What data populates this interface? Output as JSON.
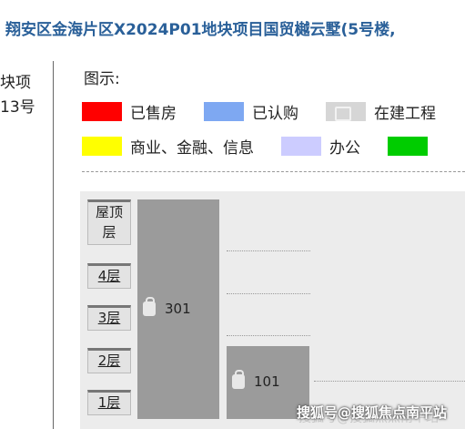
{
  "header": {
    "title": "翔安区金海片区X2024P01地块项目国贸樾云墅(5号楼,"
  },
  "building": {
    "line1": "块项",
    "line2": "13号"
  },
  "legend": {
    "title": "图示:",
    "items": [
      {
        "label": "已售房",
        "color": "#ff0000"
      },
      {
        "label": "已认购",
        "color": "#7ea8f2"
      },
      {
        "label": "在建工程",
        "color": "#d6d6d6"
      },
      {
        "label": "商业、金融、信息",
        "color": "#ffff00"
      },
      {
        "label": "办公",
        "color": "#ccccff"
      },
      {
        "label": "",
        "color": "#00cc00"
      }
    ]
  },
  "floors": [
    {
      "label": "屋顶层"
    },
    {
      "label": "4层"
    },
    {
      "label": "3层"
    },
    {
      "label": "2层"
    },
    {
      "label": "1层"
    }
  ],
  "units": [
    {
      "number": "301",
      "status": "在建工程",
      "color": "#9b9b9b"
    },
    {
      "number": "101",
      "status": "在建工程",
      "color": "#9b9b9b"
    }
  ],
  "watermark": {
    "text": "搜狐号@搜狐焦点南平站",
    "behind_text": "搜狐号@搜狐焦点南平站"
  }
}
